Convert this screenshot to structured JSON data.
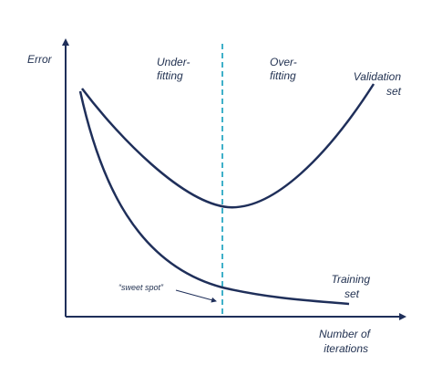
{
  "axes": {
    "y_label": "Error",
    "x_label": [
      "Number of",
      "iterations"
    ]
  },
  "regions": [
    {
      "lines": [
        "Under-",
        "fitting"
      ]
    },
    {
      "lines": [
        "Over-",
        "fitting"
      ]
    }
  ],
  "curves": [
    {
      "label": [
        "Validation",
        "set"
      ]
    },
    {
      "label": [
        "Training",
        "set"
      ]
    }
  ],
  "annotation": "“sweet spot”"
}
